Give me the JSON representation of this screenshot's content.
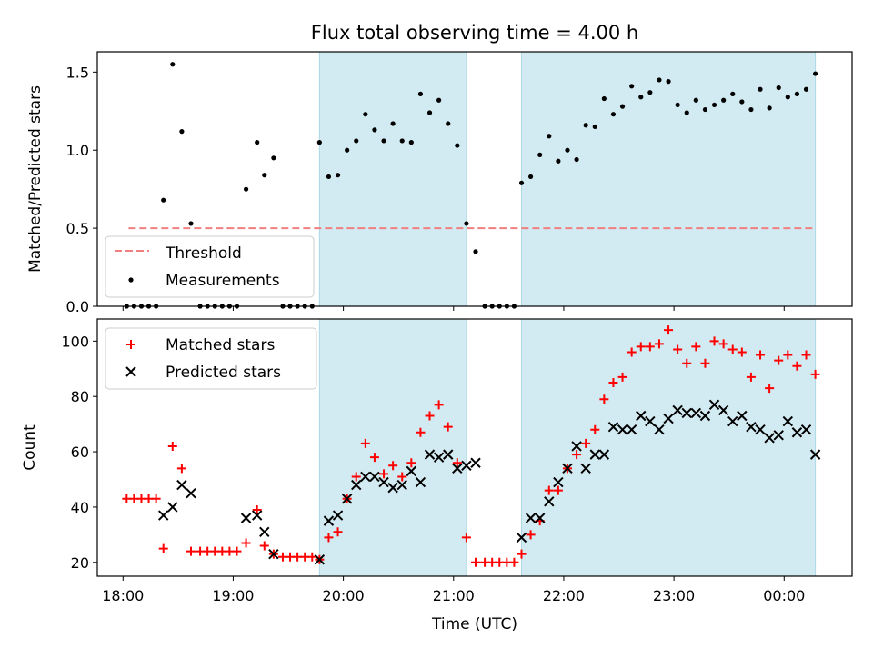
{
  "title": "Flux total observing time = 4.00 h",
  "colors": {
    "shade": "#add8e6",
    "threshold": "#f08080",
    "matched": "#ff0000",
    "predicted": "#000000",
    "measurement": "#000000"
  },
  "chart_data": [
    {
      "type": "scatter",
      "ylabel": "Matched/Predicted stars",
      "ylim": [
        0,
        1.63
      ],
      "xlim": [
        "17:46",
        "00:37"
      ],
      "yticks": [
        0.0,
        0.5,
        1.0,
        1.5
      ],
      "ytick_labels": [
        "0.0",
        "0.5",
        "1.0",
        "1.5"
      ],
      "shaded_intervals": [
        [
          "19:47",
          "21:07"
        ],
        [
          "21:37",
          "00:17"
        ]
      ],
      "threshold": {
        "name": "Threshold",
        "y": 0.5,
        "x_range": [
          "18:03",
          "00:17"
        ]
      },
      "legend": {
        "position": "lower-left",
        "entries": [
          "Threshold",
          "Measurements"
        ]
      },
      "series": [
        {
          "name": "Measurements",
          "points": [
            [
              "18:02",
              0
            ],
            [
              "18:06",
              0
            ],
            [
              "18:10",
              0
            ],
            [
              "18:14",
              0
            ],
            [
              "18:18",
              0
            ],
            [
              "18:22",
              0.68
            ],
            [
              "18:27",
              1.55
            ],
            [
              "18:32",
              1.12
            ],
            [
              "18:37",
              0.53
            ],
            [
              "18:42",
              0
            ],
            [
              "18:46",
              0
            ],
            [
              "18:50",
              0
            ],
            [
              "18:54",
              0
            ],
            [
              "18:58",
              0
            ],
            [
              "19:02",
              0
            ],
            [
              "19:07",
              0.75
            ],
            [
              "19:13",
              1.05
            ],
            [
              "19:17",
              0.84
            ],
            [
              "19:22",
              0.95
            ],
            [
              "19:27",
              0
            ],
            [
              "19:31",
              0
            ],
            [
              "19:35",
              0
            ],
            [
              "19:39",
              0
            ],
            [
              "19:43",
              0
            ],
            [
              "19:47",
              1.05
            ],
            [
              "19:52",
              0.83
            ],
            [
              "19:57",
              0.84
            ],
            [
              "20:02",
              1.0
            ],
            [
              "20:07",
              1.06
            ],
            [
              "20:12",
              1.23
            ],
            [
              "20:17",
              1.13
            ],
            [
              "20:22",
              1.06
            ],
            [
              "20:27",
              1.17
            ],
            [
              "20:32",
              1.06
            ],
            [
              "20:37",
              1.05
            ],
            [
              "20:42",
              1.36
            ],
            [
              "20:47",
              1.24
            ],
            [
              "20:52",
              1.32
            ],
            [
              "20:57",
              1.17
            ],
            [
              "21:02",
              1.03
            ],
            [
              "21:07",
              0.53
            ],
            [
              "21:12",
              0.35
            ],
            [
              "21:17",
              0
            ],
            [
              "21:21",
              0
            ],
            [
              "21:25",
              0
            ],
            [
              "21:29",
              0
            ],
            [
              "21:33",
              0
            ],
            [
              "21:37",
              0.79
            ],
            [
              "21:42",
              0.83
            ],
            [
              "21:47",
              0.97
            ],
            [
              "21:52",
              1.09
            ],
            [
              "21:57",
              0.93
            ],
            [
              "22:02",
              1.0
            ],
            [
              "22:07",
              0.94
            ],
            [
              "22:12",
              1.16
            ],
            [
              "22:17",
              1.15
            ],
            [
              "22:22",
              1.33
            ],
            [
              "22:27",
              1.23
            ],
            [
              "22:32",
              1.28
            ],
            [
              "22:37",
              1.41
            ],
            [
              "22:42",
              1.34
            ],
            [
              "22:47",
              1.37
            ],
            [
              "22:52",
              1.45
            ],
            [
              "22:57",
              1.44
            ],
            [
              "23:02",
              1.29
            ],
            [
              "23:07",
              1.24
            ],
            [
              "23:12",
              1.32
            ],
            [
              "23:17",
              1.26
            ],
            [
              "23:22",
              1.29
            ],
            [
              "23:27",
              1.32
            ],
            [
              "23:32",
              1.36
            ],
            [
              "23:37",
              1.31
            ],
            [
              "23:42",
              1.26
            ],
            [
              "23:47",
              1.39
            ],
            [
              "23:52",
              1.27
            ],
            [
              "23:57",
              1.4
            ],
            [
              "00:02",
              1.34
            ],
            [
              "00:07",
              1.36
            ],
            [
              "00:12",
              1.39
            ],
            [
              "00:17",
              1.49
            ]
          ]
        }
      ]
    },
    {
      "type": "scatter",
      "xlabel": "Time (UTC)",
      "ylabel": "Count",
      "ylim": [
        15,
        108
      ],
      "xlim": [
        "17:46",
        "00:37"
      ],
      "yticks": [
        20,
        40,
        60,
        80,
        100
      ],
      "xticks": [
        "18:00",
        "19:00",
        "20:00",
        "21:00",
        "22:00",
        "23:00",
        "00:00"
      ],
      "shaded_intervals": [
        [
          "19:47",
          "21:07"
        ],
        [
          "21:37",
          "00:17"
        ]
      ],
      "legend": {
        "position": "upper-left",
        "entries": [
          "Matched stars",
          "Predicted stars"
        ]
      },
      "series": [
        {
          "name": "Matched stars",
          "marker": "+",
          "points": [
            [
              "18:02",
              43
            ],
            [
              "18:06",
              43
            ],
            [
              "18:10",
              43
            ],
            [
              "18:14",
              43
            ],
            [
              "18:18",
              43
            ],
            [
              "18:22",
              25
            ],
            [
              "18:27",
              62
            ],
            [
              "18:32",
              54
            ],
            [
              "18:37",
              24
            ],
            [
              "18:42",
              24
            ],
            [
              "18:46",
              24
            ],
            [
              "18:50",
              24
            ],
            [
              "18:54",
              24
            ],
            [
              "18:58",
              24
            ],
            [
              "19:02",
              24
            ],
            [
              "19:07",
              27
            ],
            [
              "19:13",
              39
            ],
            [
              "19:17",
              26
            ],
            [
              "19:22",
              23
            ],
            [
              "19:27",
              22
            ],
            [
              "19:31",
              22
            ],
            [
              "19:35",
              22
            ],
            [
              "19:39",
              22
            ],
            [
              "19:43",
              22
            ],
            [
              "19:47",
              21
            ],
            [
              "19:52",
              29
            ],
            [
              "19:57",
              31
            ],
            [
              "20:02",
              43
            ],
            [
              "20:07",
              51
            ],
            [
              "20:12",
              63
            ],
            [
              "20:17",
              58
            ],
            [
              "20:22",
              52
            ],
            [
              "20:27",
              55
            ],
            [
              "20:32",
              51
            ],
            [
              "20:37",
              56
            ],
            [
              "20:42",
              67
            ],
            [
              "20:47",
              73
            ],
            [
              "20:52",
              77
            ],
            [
              "20:57",
              69
            ],
            [
              "21:02",
              56
            ],
            [
              "21:07",
              29
            ],
            [
              "21:12",
              20
            ],
            [
              "21:17",
              20
            ],
            [
              "21:21",
              20
            ],
            [
              "21:25",
              20
            ],
            [
              "21:29",
              20
            ],
            [
              "21:33",
              20
            ],
            [
              "21:37",
              23
            ],
            [
              "21:42",
              30
            ],
            [
              "21:47",
              35
            ],
            [
              "21:52",
              46
            ],
            [
              "21:57",
              46
            ],
            [
              "22:02",
              54
            ],
            [
              "22:07",
              59
            ],
            [
              "22:12",
              63
            ],
            [
              "22:17",
              68
            ],
            [
              "22:22",
              79
            ],
            [
              "22:27",
              85
            ],
            [
              "22:32",
              87
            ],
            [
              "22:37",
              96
            ],
            [
              "22:42",
              98
            ],
            [
              "22:47",
              98
            ],
            [
              "22:52",
              99
            ],
            [
              "22:57",
              104
            ],
            [
              "23:02",
              97
            ],
            [
              "23:07",
              92
            ],
            [
              "23:12",
              98
            ],
            [
              "23:17",
              92
            ],
            [
              "23:22",
              100
            ],
            [
              "23:27",
              99
            ],
            [
              "23:32",
              97
            ],
            [
              "23:37",
              96
            ],
            [
              "23:42",
              87
            ],
            [
              "23:47",
              95
            ],
            [
              "23:52",
              83
            ],
            [
              "23:57",
              93
            ],
            [
              "00:02",
              95
            ],
            [
              "00:07",
              91
            ],
            [
              "00:12",
              95
            ],
            [
              "00:17",
              88
            ]
          ]
        },
        {
          "name": "Predicted stars",
          "marker": "x",
          "points": [
            [
              "18:22",
              37
            ],
            [
              "18:27",
              40
            ],
            [
              "18:32",
              48
            ],
            [
              "18:37",
              45
            ],
            [
              "19:07",
              36
            ],
            [
              "19:13",
              37
            ],
            [
              "19:17",
              31
            ],
            [
              "19:22",
              23
            ],
            [
              "19:47",
              21
            ],
            [
              "19:52",
              35
            ],
            [
              "19:57",
              37
            ],
            [
              "20:02",
              43
            ],
            [
              "20:07",
              48
            ],
            [
              "20:12",
              51
            ],
            [
              "20:17",
              51
            ],
            [
              "20:22",
              49
            ],
            [
              "20:27",
              47
            ],
            [
              "20:32",
              48
            ],
            [
              "20:37",
              53
            ],
            [
              "20:42",
              49
            ],
            [
              "20:47",
              59
            ],
            [
              "20:52",
              58
            ],
            [
              "20:57",
              59
            ],
            [
              "21:02",
              54
            ],
            [
              "21:07",
              55
            ],
            [
              "21:12",
              56
            ],
            [
              "21:37",
              29
            ],
            [
              "21:42",
              36
            ],
            [
              "21:47",
              36
            ],
            [
              "21:52",
              42
            ],
            [
              "21:57",
              49
            ],
            [
              "22:02",
              54
            ],
            [
              "22:07",
              62
            ],
            [
              "22:12",
              54
            ],
            [
              "22:17",
              59
            ],
            [
              "22:22",
              59
            ],
            [
              "22:27",
              69
            ],
            [
              "22:32",
              68
            ],
            [
              "22:37",
              68
            ],
            [
              "22:42",
              73
            ],
            [
              "22:47",
              71
            ],
            [
              "22:52",
              68
            ],
            [
              "22:57",
              72
            ],
            [
              "23:02",
              75
            ],
            [
              "23:07",
              74
            ],
            [
              "23:12",
              74
            ],
            [
              "23:17",
              73
            ],
            [
              "23:22",
              77
            ],
            [
              "23:27",
              75
            ],
            [
              "23:32",
              71
            ],
            [
              "23:37",
              73
            ],
            [
              "23:42",
              69
            ],
            [
              "23:47",
              68
            ],
            [
              "23:52",
              65
            ],
            [
              "23:57",
              66
            ],
            [
              "00:02",
              71
            ],
            [
              "00:07",
              67
            ],
            [
              "00:12",
              68
            ],
            [
              "00:17",
              59
            ]
          ]
        }
      ]
    }
  ]
}
